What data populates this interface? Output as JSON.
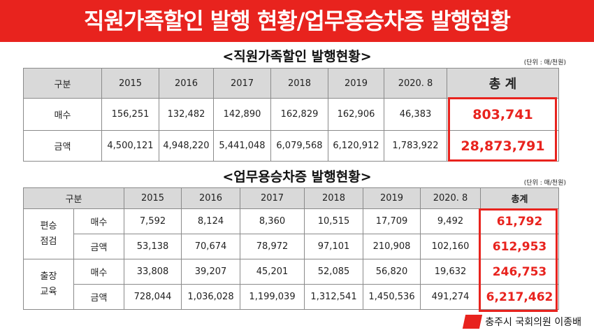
{
  "banner": {
    "title": "직원가족할인 발행 현황/업무용승차증 발행현황"
  },
  "table1": {
    "title": "<직원가족할인 발행현황>",
    "unit": "(단위 : 매/천원)",
    "header": [
      "구분",
      "2015",
      "2016",
      "2017",
      "2018",
      "2019",
      "2020. 8",
      "총 계"
    ],
    "rows": [
      {
        "label": "매수",
        "values": [
          "156,251",
          "132,482",
          "142,890",
          "162,829",
          "162,906",
          "46,383"
        ],
        "total": "803,741"
      },
      {
        "label": "금액",
        "values": [
          "4,500,121",
          "4,948,220",
          "5,441,048",
          "6,079,568",
          "6,120,912",
          "1,783,922"
        ],
        "total": "28,873,791"
      }
    ]
  },
  "table2": {
    "title": "<업무용승차증 발행현황>",
    "unit": "(단위 : 매/천원)",
    "header": [
      "구분",
      "2015",
      "2016",
      "2017",
      "2018",
      "2019",
      "2020. 8",
      "총계"
    ],
    "groups": [
      {
        "label": "편승\n점검",
        "rows": [
          {
            "label": "매수",
            "values": [
              "7,592",
              "8,124",
              "8,360",
              "10,515",
              "17,709",
              "9,492"
            ],
            "total": "61,792"
          },
          {
            "label": "금액",
            "values": [
              "53,138",
              "70,674",
              "78,972",
              "97,101",
              "210,908",
              "102,160"
            ],
            "total": "612,953"
          }
        ]
      },
      {
        "label": "출장\n교육",
        "rows": [
          {
            "label": "매수",
            "values": [
              "33,808",
              "39,207",
              "45,201",
              "52,085",
              "56,820",
              "19,632"
            ],
            "total": "246,753"
          },
          {
            "label": "금액",
            "values": [
              "728,044",
              "1,036,028",
              "1,199,039",
              "1,312,541",
              "1,450,536",
              "491,274"
            ],
            "total": "6,217,462"
          }
        ]
      }
    ]
  },
  "footer": {
    "text": "충주시 국회의원 이종배",
    "logo_icon": "red-parallelogram-icon"
  },
  "colors": {
    "accent": "#e8231e",
    "header_bg": "#d9d9d9"
  }
}
